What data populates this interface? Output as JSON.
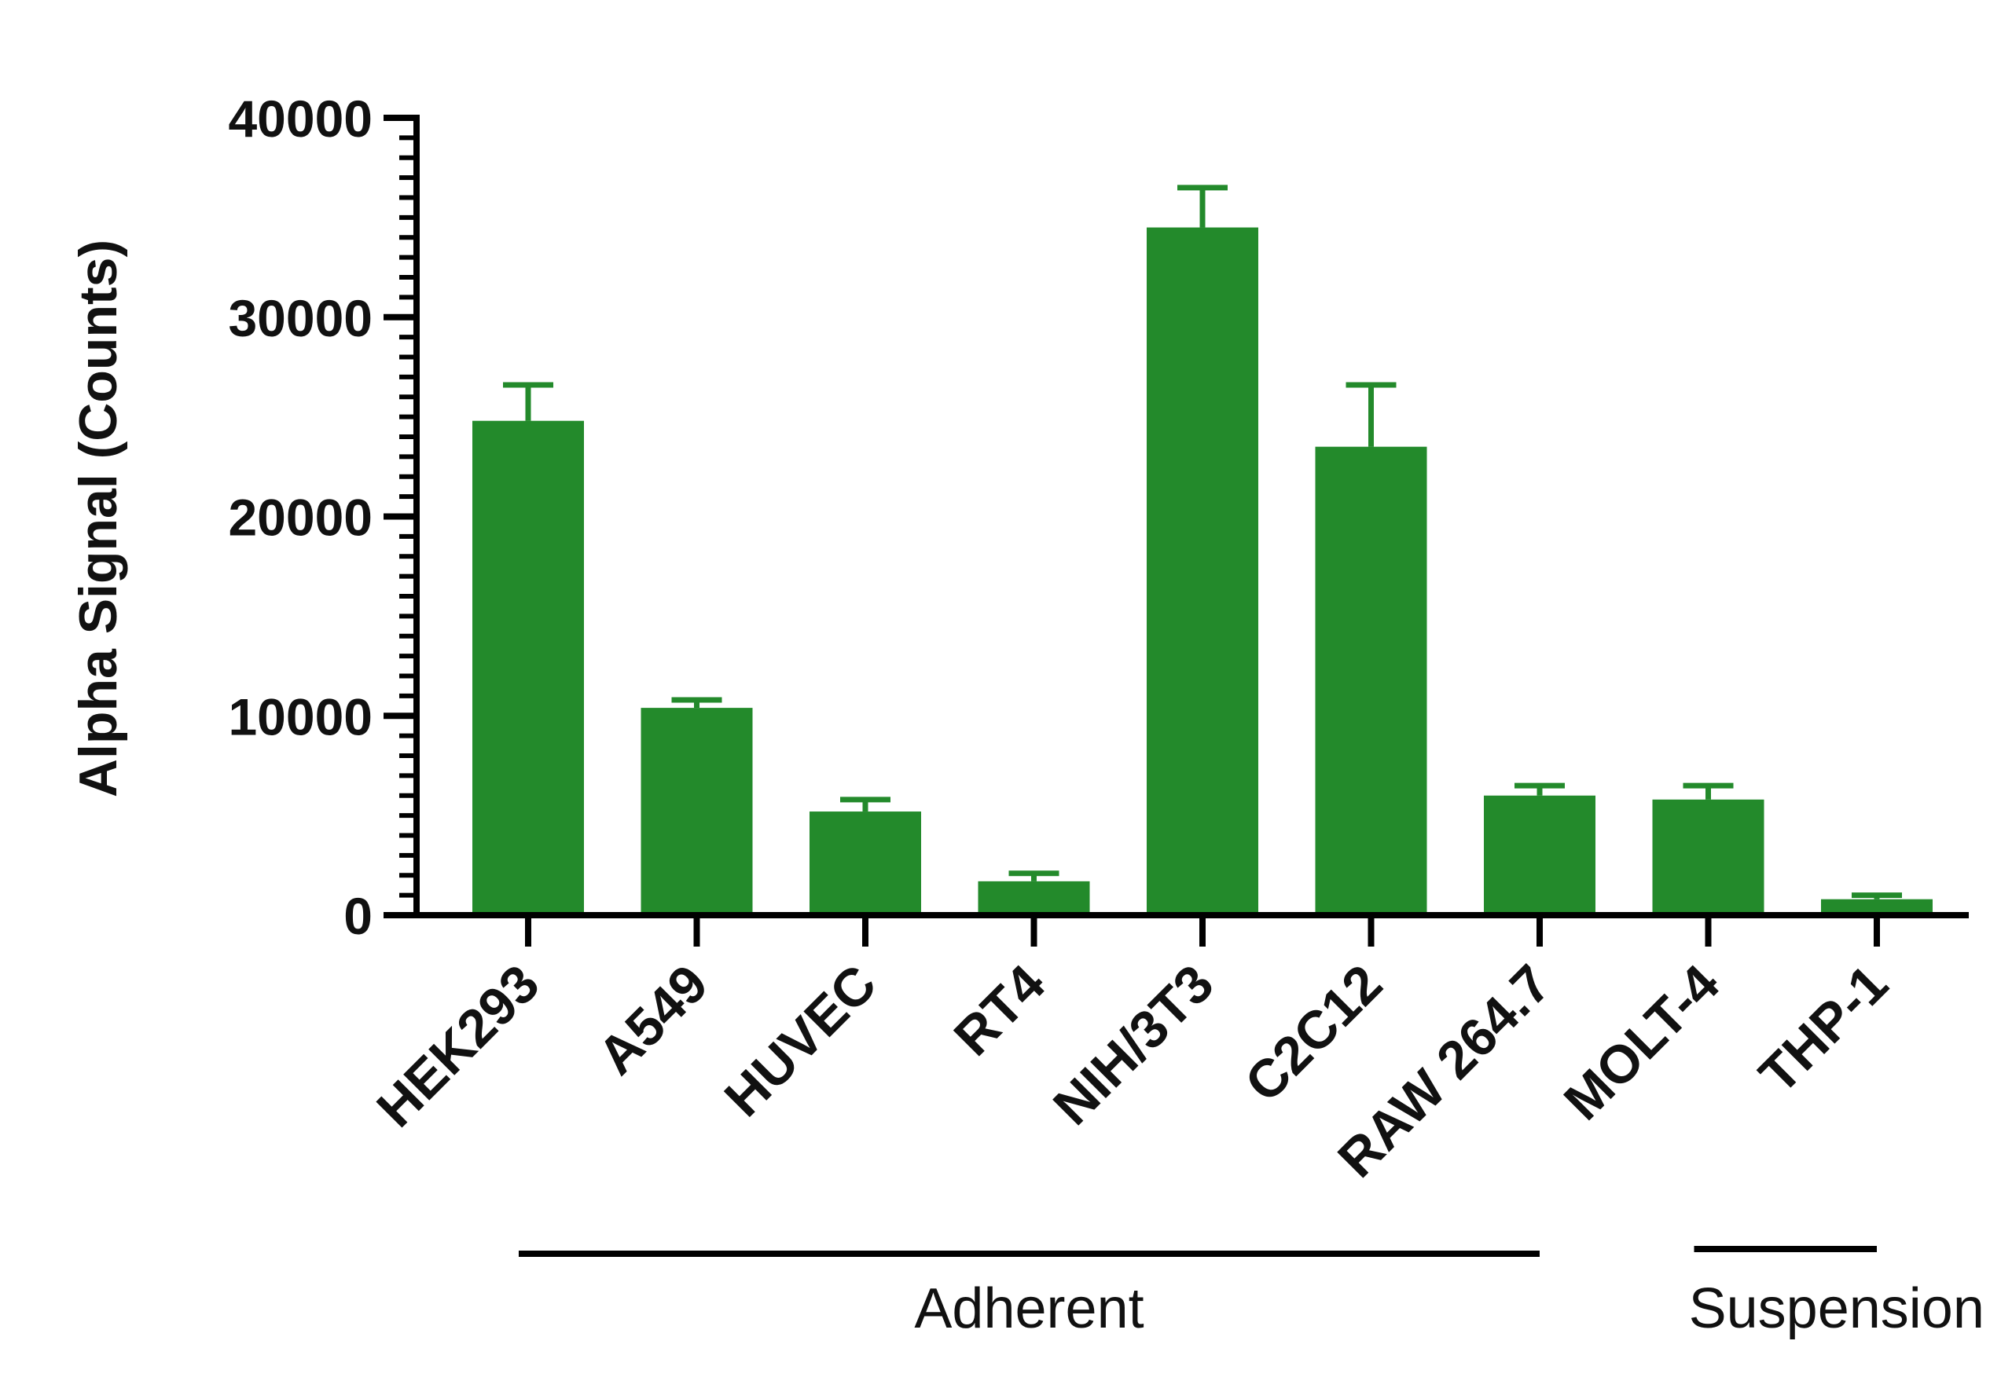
{
  "chart_data": {
    "type": "bar",
    "categories": [
      "HEK293",
      "A549",
      "HUVEC",
      "RT4",
      "NIH/3T3",
      "C2C12",
      "RAW 264.7",
      "MOLT-4",
      "THP-1"
    ],
    "series": [
      {
        "values": [
          24800,
          10400,
          5200,
          1700,
          34500,
          23500,
          6000,
          5800,
          800
        ],
        "error_upper": [
          26600,
          10800,
          5800,
          2100,
          36500,
          26600,
          6500,
          6500,
          1000
        ]
      }
    ],
    "title": "",
    "xlabel": "",
    "ylabel": "Alpha Signal (Counts)",
    "ylim": [
      0,
      40000
    ],
    "yticks": [
      0,
      10000,
      20000,
      30000,
      40000
    ],
    "grid": false,
    "legend": "none",
    "bar_color": "#238a2b",
    "axis_color": "#000000",
    "groups": [
      {
        "label": "Adherent",
        "first": "HEK293",
        "last": "RAW 264.7"
      },
      {
        "label": "Suspension",
        "first": "MOLT-4",
        "last": "THP-1"
      }
    ]
  }
}
